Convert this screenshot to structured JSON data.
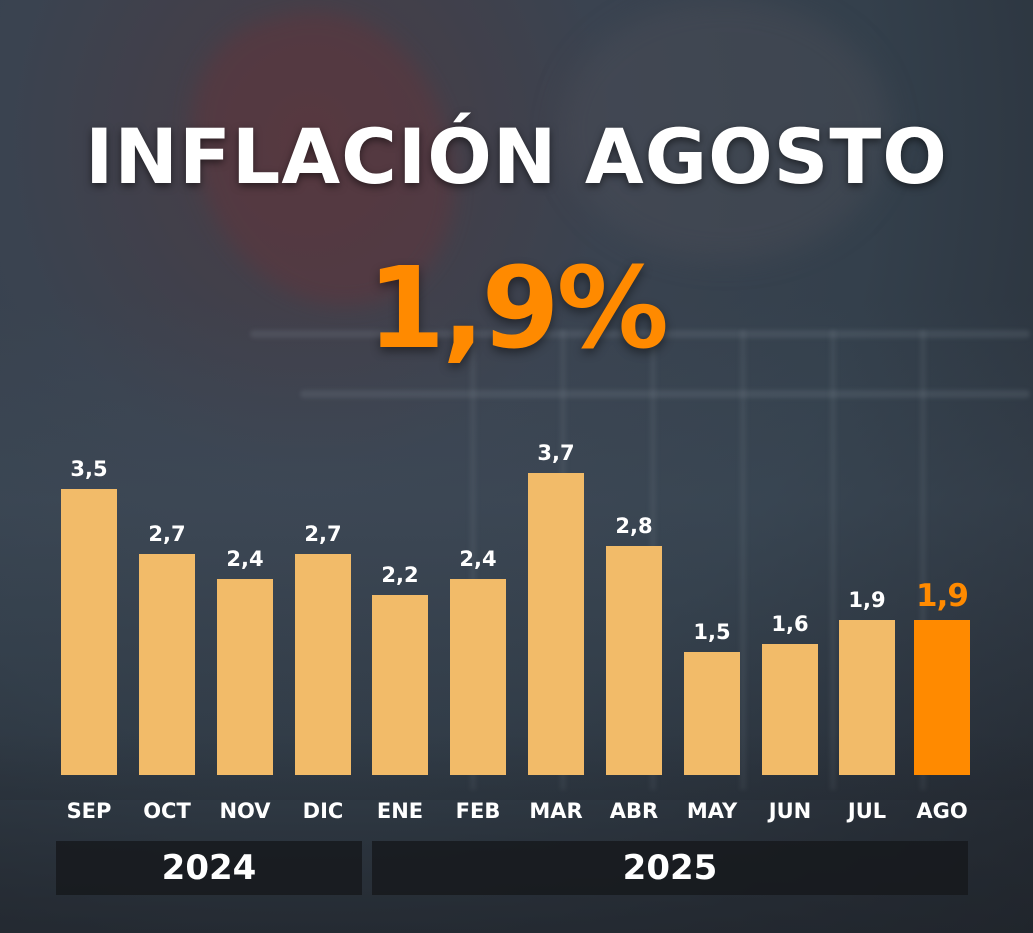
{
  "title": "INFLACIÓN AGOSTO",
  "headline_value": "1,9%",
  "colors": {
    "bar": "#f2bb69",
    "highlight": "#ff8a00",
    "text": "#ffffff",
    "year_band": "#16181c"
  },
  "years": [
    {
      "label": "2024",
      "months": [
        "SEP",
        "OCT",
        "NOV",
        "DIC"
      ]
    },
    {
      "label": "2025",
      "months": [
        "ENE",
        "FEB",
        "MAR",
        "ABR",
        "MAY",
        "JUN",
        "JUL",
        "AGO"
      ]
    }
  ],
  "bars": [
    {
      "month": "SEP",
      "label": "3,5",
      "value": 3.5
    },
    {
      "month": "OCT",
      "label": "2,7",
      "value": 2.7
    },
    {
      "month": "NOV",
      "label": "2,4",
      "value": 2.4
    },
    {
      "month": "DIC",
      "label": "2,7",
      "value": 2.7
    },
    {
      "month": "ENE",
      "label": "2,2",
      "value": 2.2
    },
    {
      "month": "FEB",
      "label": "2,4",
      "value": 2.4
    },
    {
      "month": "MAR",
      "label": "3,7",
      "value": 3.7
    },
    {
      "month": "ABR",
      "label": "2,8",
      "value": 2.8
    },
    {
      "month": "MAY",
      "label": "1,5",
      "value": 1.5
    },
    {
      "month": "JUN",
      "label": "1,6",
      "value": 1.6
    },
    {
      "month": "JUL",
      "label": "1,9",
      "value": 1.9
    },
    {
      "month": "AGO",
      "label": "1,9",
      "value": 1.9,
      "highlight": true
    }
  ],
  "chart_data": {
    "type": "bar",
    "title": "INFLACIÓN AGOSTO",
    "subtitle": "1,9%",
    "categories": [
      "SEP",
      "OCT",
      "NOV",
      "DIC",
      "ENE",
      "FEB",
      "MAR",
      "ABR",
      "MAY",
      "JUN",
      "JUL",
      "AGO"
    ],
    "values": [
      3.5,
      2.7,
      2.4,
      2.7,
      2.2,
      2.4,
      3.7,
      2.8,
      1.5,
      1.6,
      1.9,
      1.9
    ],
    "value_labels": [
      "3,5",
      "2,7",
      "2,4",
      "2,7",
      "2,2",
      "2,4",
      "3,7",
      "2,8",
      "1,5",
      "1,6",
      "1,9",
      "1,9"
    ],
    "highlighted_category": "AGO",
    "group_labels": [
      {
        "label": "2024",
        "categories": [
          "SEP",
          "OCT",
          "NOV",
          "DIC"
        ]
      },
      {
        "label": "2025",
        "categories": [
          "ENE",
          "FEB",
          "MAR",
          "ABR",
          "MAY",
          "JUN",
          "JUL",
          "AGO"
        ]
      }
    ],
    "xlabel": "",
    "ylabel": "",
    "ylim": [
      0,
      4
    ],
    "grid": false,
    "legend": null
  }
}
